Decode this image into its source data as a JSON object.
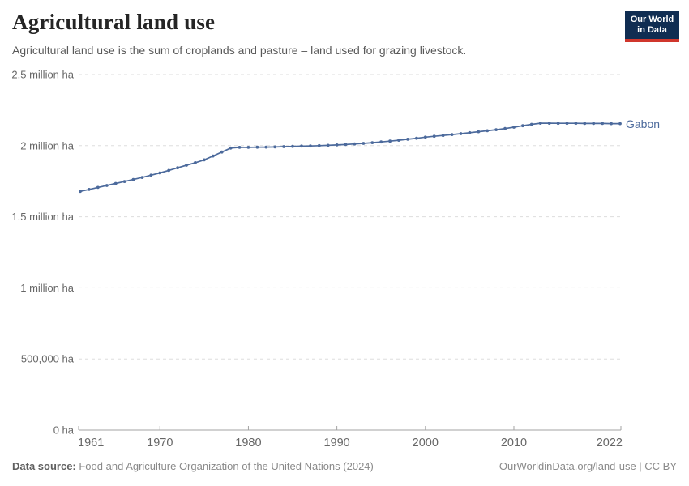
{
  "header": {
    "title": "Agricultural land use",
    "subtitle": "Agricultural land use is the sum of croplands and pasture – land used for grazing livestock."
  },
  "logo": {
    "line1": "Our World",
    "line2": "in Data",
    "bg_color": "#102d52",
    "stripe_color": "#d0362c"
  },
  "footer": {
    "datasource_label": "Data source:",
    "datasource_text": " Food and Agriculture Organization of the United Nations (2024)",
    "right_text": "OurWorldinData.org/land-use | CC BY"
  },
  "colors": {
    "line": "#4C6A9C",
    "grid": "#dddddd",
    "axis": "#a3a3a3",
    "tick_label": "#666666"
  },
  "chart_data": {
    "type": "line",
    "title": "Agricultural land use",
    "xlabel": "",
    "ylabel": "ha",
    "xlim": [
      1961,
      2022
    ],
    "ylim": [
      0,
      2500000
    ],
    "grid": "horizontal-dashed",
    "legend_position": "end-of-line-label",
    "xticks": [
      1961,
      1970,
      1980,
      1990,
      2000,
      2010,
      2022
    ],
    "yticks": [
      {
        "value": 0,
        "label": "0 ha"
      },
      {
        "value": 500000,
        "label": "500,000 ha"
      },
      {
        "value": 1000000,
        "label": "1 million ha"
      },
      {
        "value": 1500000,
        "label": "1.5 million ha"
      },
      {
        "value": 2000000,
        "label": "2 million ha"
      },
      {
        "value": 2500000,
        "label": "2.5 million ha"
      }
    ],
    "series": [
      {
        "name": "Gabon",
        "unit": "ha",
        "years": [
          1961,
          1962,
          1963,
          1964,
          1965,
          1966,
          1967,
          1968,
          1969,
          1970,
          1971,
          1972,
          1973,
          1974,
          1975,
          1976,
          1977,
          1978,
          1979,
          1980,
          1981,
          1982,
          1983,
          1984,
          1985,
          1986,
          1987,
          1988,
          1989,
          1990,
          1991,
          1992,
          1993,
          1994,
          1995,
          1996,
          1997,
          1998,
          1999,
          2000,
          2001,
          2002,
          2003,
          2004,
          2005,
          2006,
          2007,
          2008,
          2009,
          2010,
          2011,
          2012,
          2013,
          2014,
          2015,
          2016,
          2017,
          2018,
          2019,
          2020,
          2021,
          2022
        ],
        "values": [
          1678000,
          1692000,
          1706000,
          1720000,
          1734000,
          1748000,
          1762000,
          1776000,
          1792000,
          1808000,
          1826000,
          1844000,
          1862000,
          1880000,
          1900000,
          1927000,
          1955000,
          1983000,
          1988000,
          1988000,
          1989000,
          1990000,
          1991000,
          1993000,
          1995000,
          1997000,
          1998000,
          2000000,
          2002000,
          2005000,
          2008000,
          2012000,
          2016000,
          2021000,
          2026000,
          2032000,
          2038000,
          2045000,
          2052000,
          2060000,
          2066000,
          2072000,
          2078000,
          2084000,
          2091000,
          2098000,
          2105000,
          2112000,
          2120000,
          2130000,
          2140000,
          2150000,
          2158000,
          2158000,
          2157000,
          2157000,
          2157000,
          2156000,
          2156000,
          2156000,
          2155000,
          2155000
        ]
      }
    ]
  }
}
